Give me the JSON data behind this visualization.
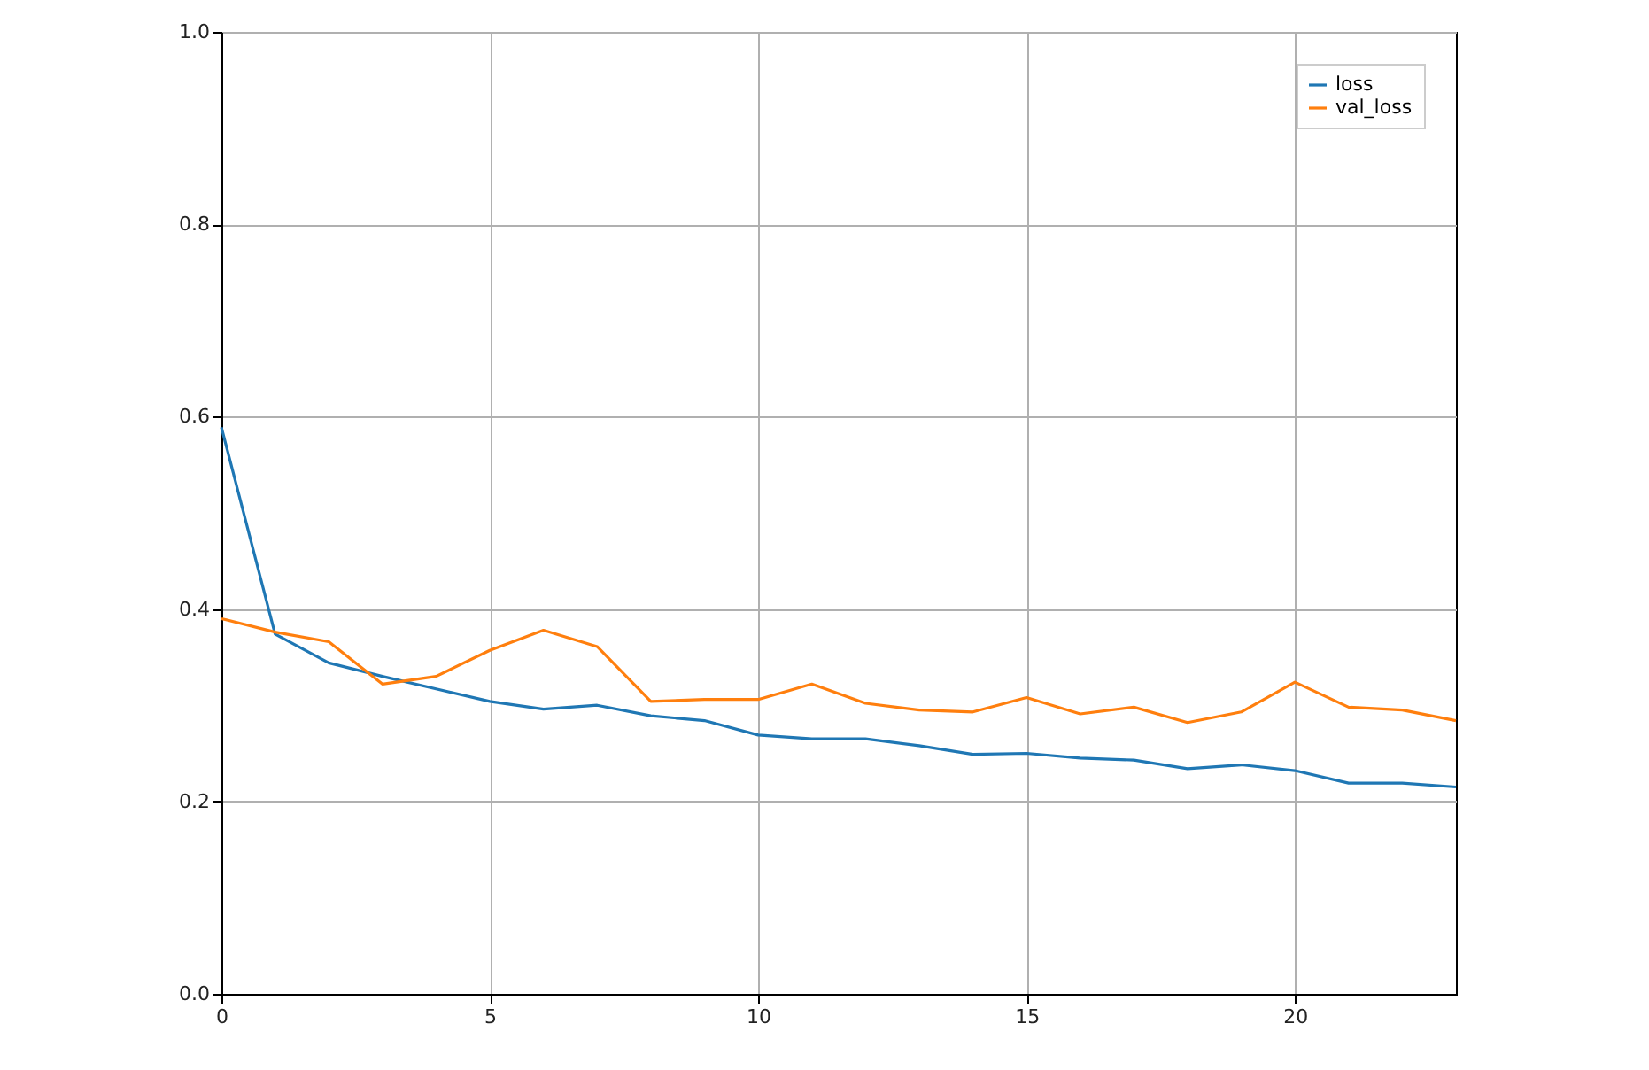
{
  "chart_data": {
    "type": "line",
    "x": [
      0,
      1,
      2,
      3,
      4,
      5,
      6,
      7,
      8,
      9,
      10,
      11,
      12,
      13,
      14,
      15,
      16,
      17,
      18,
      19,
      20,
      21,
      22,
      23
    ],
    "series": [
      {
        "name": "loss",
        "color": "#1f77b4",
        "values": [
          0.589,
          0.374,
          0.344,
          0.33,
          0.317,
          0.304,
          0.296,
          0.3,
          0.289,
          0.284,
          0.269,
          0.265,
          0.265,
          0.258,
          0.249,
          0.25,
          0.245,
          0.243,
          0.234,
          0.238,
          0.232,
          0.219,
          0.219,
          0.215
        ]
      },
      {
        "name": "val_loss",
        "color": "#ff7f0e",
        "values": [
          0.39,
          0.376,
          0.366,
          0.322,
          0.33,
          0.357,
          0.378,
          0.361,
          0.304,
          0.306,
          0.306,
          0.322,
          0.302,
          0.295,
          0.293,
          0.308,
          0.291,
          0.298,
          0.282,
          0.293,
          0.324,
          0.298,
          0.295,
          0.284
        ]
      }
    ],
    "xlim": [
      0,
      23
    ],
    "xticks": [
      0,
      5,
      10,
      15,
      20
    ],
    "ylim": [
      0,
      1
    ],
    "yticks": [
      {
        "value": 0,
        "label": "0.0"
      },
      0.2,
      0.4,
      0.6,
      0.8,
      {
        "value": 1,
        "label": "1.0"
      }
    ],
    "grid": true,
    "legend": "top right",
    "marker": "none",
    "line_style": "solid"
  }
}
